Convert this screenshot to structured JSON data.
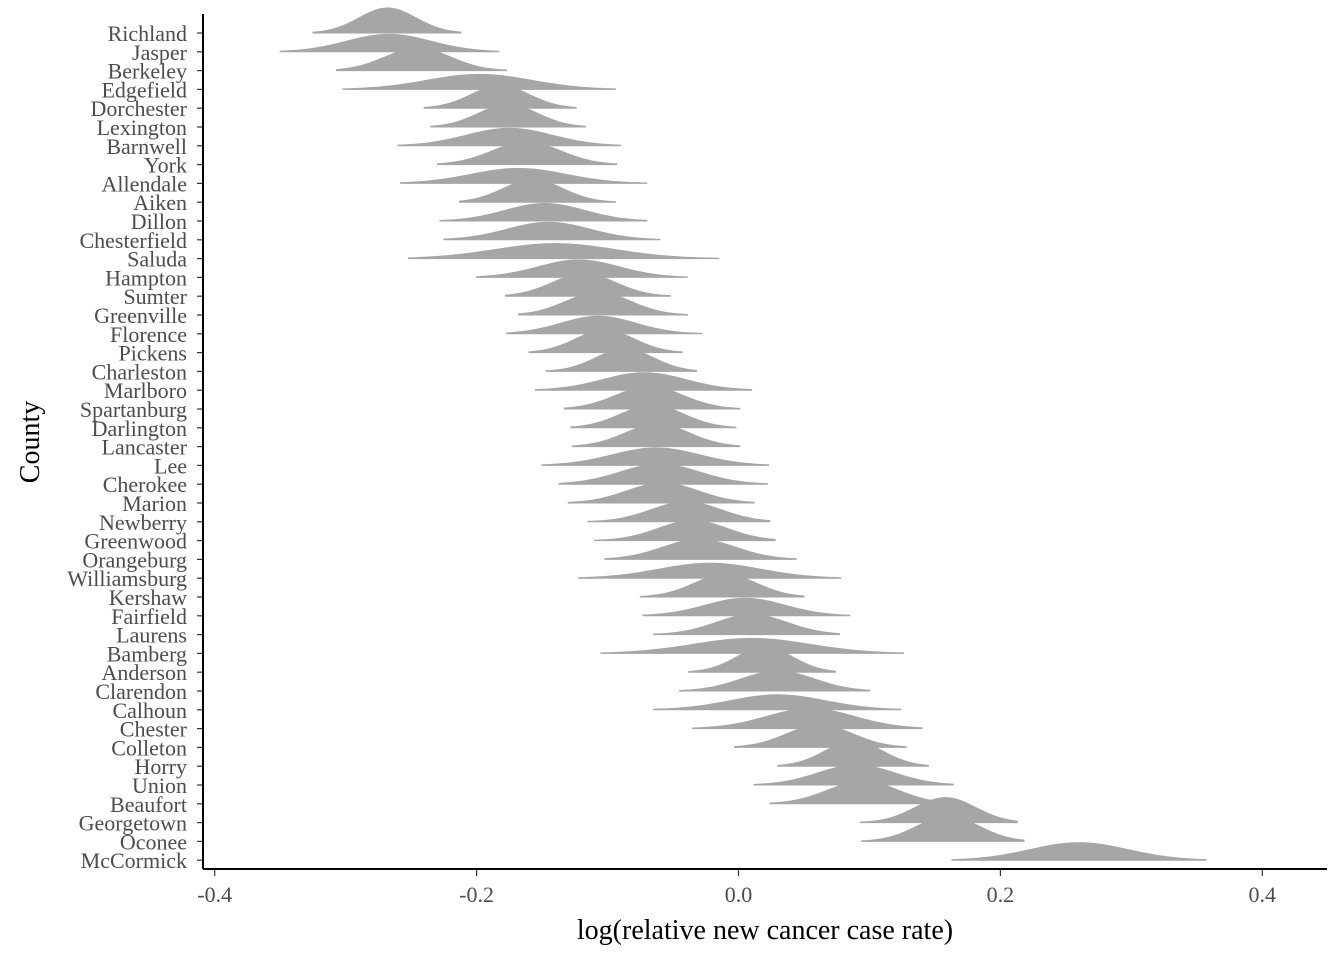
{
  "chart_data": {
    "type": "ridgeline",
    "title": "",
    "xlabel": "log(relative new cancer case rate)",
    "ylabel": "County",
    "xlim": [
      -0.41,
      0.44
    ],
    "x_ticks": [
      "-0.4",
      "-0.2",
      "0.0",
      "0.2",
      "0.4"
    ],
    "x_tick_values": [
      -0.4,
      -0.2,
      0.0,
      0.2,
      0.4
    ],
    "grid": false,
    "fill_color": "#a6a6a6",
    "line_color": "#a6a6a6",
    "categories": [
      "Richland",
      "Jasper",
      "Berkeley",
      "Edgefield",
      "Dorchester",
      "Lexington",
      "Barnwell",
      "York",
      "Allendale",
      "Aiken",
      "Dillon",
      "Chesterfield",
      "Saluda",
      "Hampton",
      "Sumter",
      "Greenville",
      "Florence",
      "Pickens",
      "Charleston",
      "Marlboro",
      "Spartanburg",
      "Darlington",
      "Lancaster",
      "Lee",
      "Cherokee",
      "Marion",
      "Newberry",
      "Greenwood",
      "Orangeburg",
      "Williamsburg",
      "Kershaw",
      "Fairfield",
      "Laurens",
      "Bamberg",
      "Anderson",
      "Clarendon",
      "Calhoun",
      "Chester",
      "Colleton",
      "Horry",
      "Union",
      "Beaufort",
      "Georgetown",
      "Oconee",
      "McCormick"
    ],
    "distributions": [
      {
        "county": "Richland",
        "min": -0.325,
        "max": -0.212,
        "mode": -0.268,
        "peak": 1.0
      },
      {
        "county": "Jasper",
        "min": -0.35,
        "max": -0.183,
        "mode": -0.267,
        "peak": 0.7
      },
      {
        "county": "Berkeley",
        "min": -0.307,
        "max": -0.177,
        "mode": -0.245,
        "peak": 0.9
      },
      {
        "county": "Edgefield",
        "min": -0.302,
        "max": -0.094,
        "mode": -0.198,
        "peak": 0.6
      },
      {
        "county": "Dorchester",
        "min": -0.24,
        "max": -0.124,
        "mode": -0.182,
        "peak": 0.9
      },
      {
        "county": "Lexington",
        "min": -0.235,
        "max": -0.117,
        "mode": -0.176,
        "peak": 0.9
      },
      {
        "county": "Barnwell",
        "min": -0.26,
        "max": -0.09,
        "mode": -0.175,
        "peak": 0.7
      },
      {
        "county": "York",
        "min": -0.23,
        "max": -0.093,
        "mode": -0.162,
        "peak": 0.9
      },
      {
        "county": "Allendale",
        "min": -0.258,
        "max": -0.07,
        "mode": -0.168,
        "peak": 0.6
      },
      {
        "county": "Aiken",
        "min": -0.213,
        "max": -0.094,
        "mode": -0.157,
        "peak": 0.9
      },
      {
        "county": "Dillon",
        "min": -0.228,
        "max": -0.07,
        "mode": -0.148,
        "peak": 0.7
      },
      {
        "county": "Chesterfield",
        "min": -0.225,
        "max": -0.06,
        "mode": -0.145,
        "peak": 0.7
      },
      {
        "county": "Saluda",
        "min": -0.252,
        "max": -0.015,
        "mode": -0.14,
        "peak": 0.6
      },
      {
        "county": "Hampton",
        "min": -0.2,
        "max": -0.039,
        "mode": -0.122,
        "peak": 0.7
      },
      {
        "county": "Sumter",
        "min": -0.178,
        "max": -0.052,
        "mode": -0.118,
        "peak": 0.9
      },
      {
        "county": "Greenville",
        "min": -0.168,
        "max": -0.039,
        "mode": -0.107,
        "peak": 0.9
      },
      {
        "county": "Florence",
        "min": -0.177,
        "max": -0.028,
        "mode": -0.107,
        "peak": 0.7
      },
      {
        "county": "Pickens",
        "min": -0.16,
        "max": -0.043,
        "mode": -0.102,
        "peak": 0.9
      },
      {
        "county": "Charleston",
        "min": -0.147,
        "max": -0.032,
        "mode": -0.087,
        "peak": 0.9
      },
      {
        "county": "Marlboro",
        "min": -0.155,
        "max": 0.01,
        "mode": -0.072,
        "peak": 0.7
      },
      {
        "county": "Spartanburg",
        "min": -0.133,
        "max": 0.001,
        "mode": -0.068,
        "peak": 0.9
      },
      {
        "county": "Darlington",
        "min": -0.128,
        "max": -0.002,
        "mode": -0.066,
        "peak": 0.9
      },
      {
        "county": "Lancaster",
        "min": -0.127,
        "max": 0.001,
        "mode": -0.062,
        "peak": 0.9
      },
      {
        "county": "Lee",
        "min": -0.15,
        "max": 0.023,
        "mode": -0.063,
        "peak": 0.7
      },
      {
        "county": "Cherokee",
        "min": -0.137,
        "max": 0.022,
        "mode": -0.06,
        "peak": 0.8
      },
      {
        "county": "Marion",
        "min": -0.13,
        "max": 0.012,
        "mode": -0.058,
        "peak": 0.8
      },
      {
        "county": "Newberry",
        "min": -0.115,
        "max": 0.024,
        "mode": -0.04,
        "peak": 0.8
      },
      {
        "county": "Greenwood",
        "min": -0.11,
        "max": 0.028,
        "mode": -0.035,
        "peak": 0.8
      },
      {
        "county": "Orangeburg",
        "min": -0.102,
        "max": 0.044,
        "mode": -0.03,
        "peak": 0.8
      },
      {
        "county": "Williamsburg",
        "min": -0.122,
        "max": 0.078,
        "mode": -0.022,
        "peak": 0.6
      },
      {
        "county": "Kershaw",
        "min": -0.075,
        "max": 0.05,
        "mode": -0.01,
        "peak": 0.9
      },
      {
        "county": "Fairfield",
        "min": -0.073,
        "max": 0.085,
        "mode": 0.005,
        "peak": 0.7
      },
      {
        "county": "Laurens",
        "min": -0.065,
        "max": 0.077,
        "mode": 0.01,
        "peak": 0.8
      },
      {
        "county": "Bamberg",
        "min": -0.105,
        "max": 0.126,
        "mode": 0.01,
        "peak": 0.6
      },
      {
        "county": "Anderson",
        "min": -0.038,
        "max": 0.074,
        "mode": 0.02,
        "peak": 1.0
      },
      {
        "county": "Clarendon",
        "min": -0.045,
        "max": 0.1,
        "mode": 0.03,
        "peak": 0.8
      },
      {
        "county": "Calhoun",
        "min": -0.065,
        "max": 0.124,
        "mode": 0.03,
        "peak": 0.6
      },
      {
        "county": "Chester",
        "min": -0.035,
        "max": 0.14,
        "mode": 0.055,
        "peak": 0.8
      },
      {
        "county": "Colleton",
        "min": -0.003,
        "max": 0.128,
        "mode": 0.062,
        "peak": 0.9
      },
      {
        "county": "Horry",
        "min": 0.03,
        "max": 0.145,
        "mode": 0.088,
        "peak": 1.0
      },
      {
        "county": "Union",
        "min": 0.012,
        "max": 0.164,
        "mode": 0.09,
        "peak": 0.8
      },
      {
        "county": "Beaufort",
        "min": 0.024,
        "max": 0.164,
        "mode": 0.095,
        "peak": 0.9
      },
      {
        "county": "Georgetown",
        "min": 0.093,
        "max": 0.213,
        "mode": 0.158,
        "peak": 1.0
      },
      {
        "county": "Oconee",
        "min": 0.094,
        "max": 0.218,
        "mode": 0.16,
        "peak": 1.0
      },
      {
        "county": "McCormick",
        "min": 0.163,
        "max": 0.357,
        "mode": 0.26,
        "peak": 0.7
      }
    ]
  }
}
